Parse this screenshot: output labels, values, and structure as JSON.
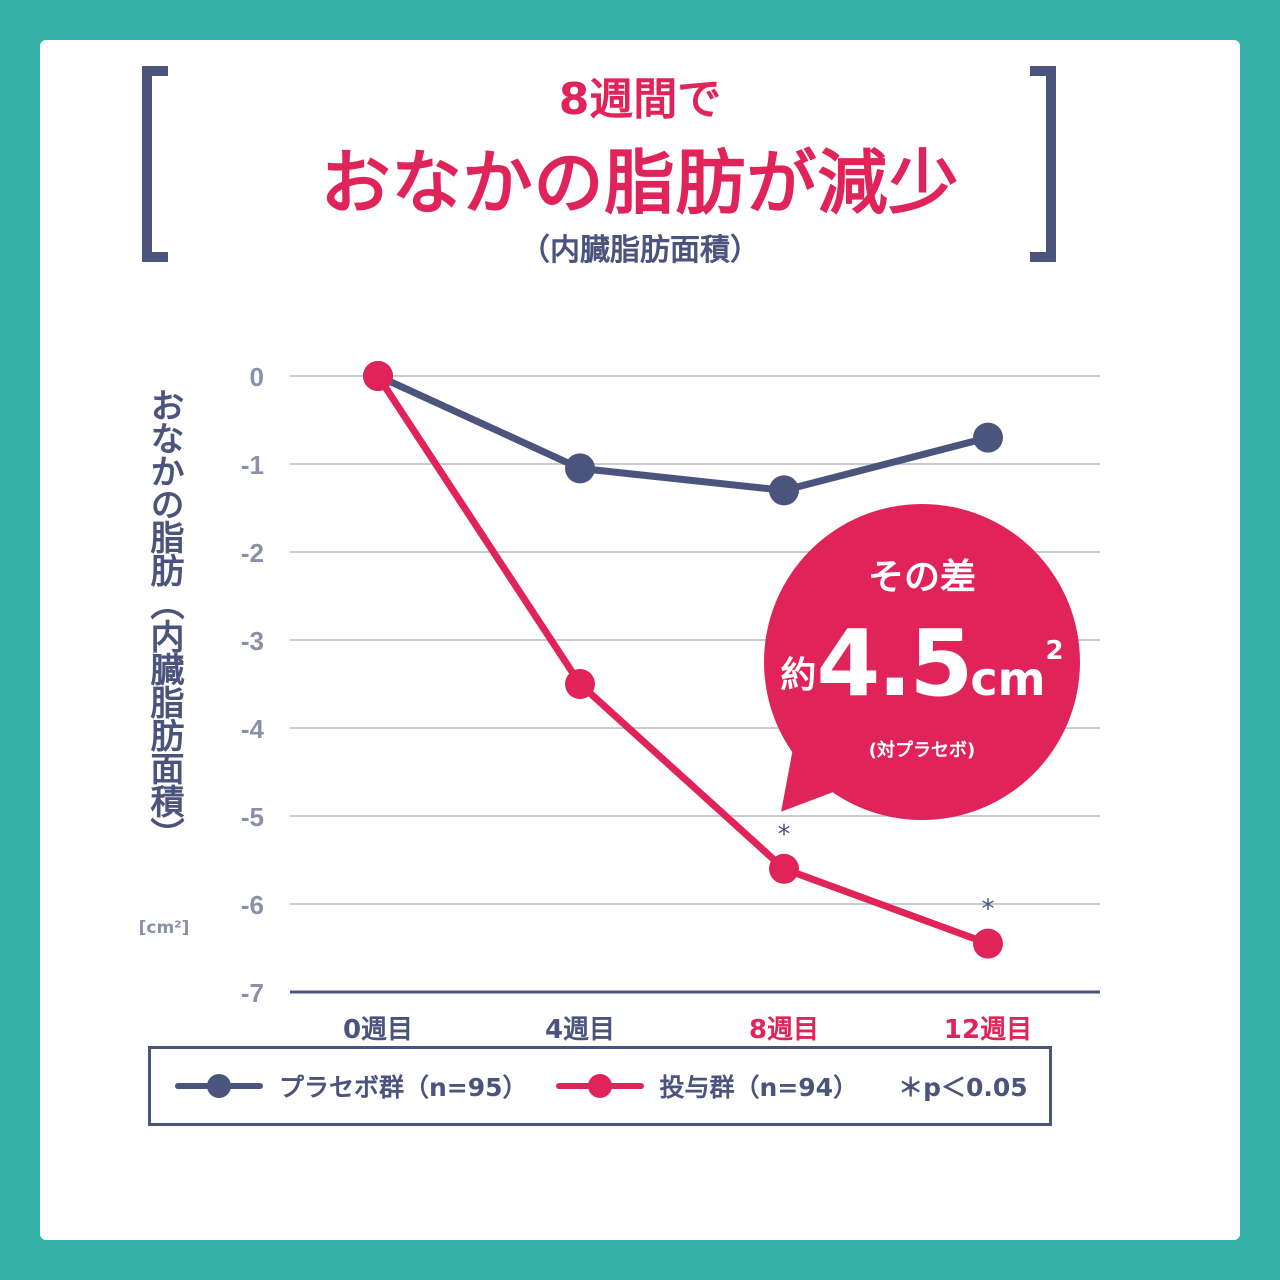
{
  "title": {
    "line1": "8週間で",
    "line2": "おなかの脂肪が減少",
    "line3": "（内臓脂肪面積）"
  },
  "chart_data": {
    "type": "line",
    "categories": [
      "0週目",
      "4週目",
      "8週目",
      "12週目"
    ],
    "highlight_categories": [
      "8週目",
      "12週目"
    ],
    "ylim": [
      -7,
      0
    ],
    "yticks": [
      0,
      -1,
      -2,
      -3,
      -4,
      -5,
      -6,
      -7
    ],
    "ylabel": "おなかの脂肪（内臓脂肪面積）",
    "yunit": "[cm²]",
    "grid": true,
    "legend_position": "bottom",
    "series": [
      {
        "name": "プラセボ群（n=95）",
        "color": "#4b547c",
        "values": [
          0,
          -1.05,
          -1.3,
          -0.7
        ]
      },
      {
        "name": "投与群（n=94）",
        "color": "#e0245a",
        "values": [
          0,
          -3.5,
          -5.6,
          -6.45
        ]
      }
    ],
    "significance_marker": "*",
    "significant_points": [
      {
        "series": 1,
        "index": 2
      },
      {
        "series": 1,
        "index": 3
      }
    ],
    "significance_note": "＊p＜0.05",
    "annotation": {
      "heading": "その差",
      "prefix": "約",
      "value": "4.5",
      "unit": "cm",
      "unit_sup": "2",
      "note": "(対プラセボ)"
    }
  },
  "colors": {
    "background": "#35b1a8",
    "card": "#ffffff",
    "navy": "#4b547c",
    "accent": "#e0245a",
    "grid": "#c9cbd4"
  }
}
